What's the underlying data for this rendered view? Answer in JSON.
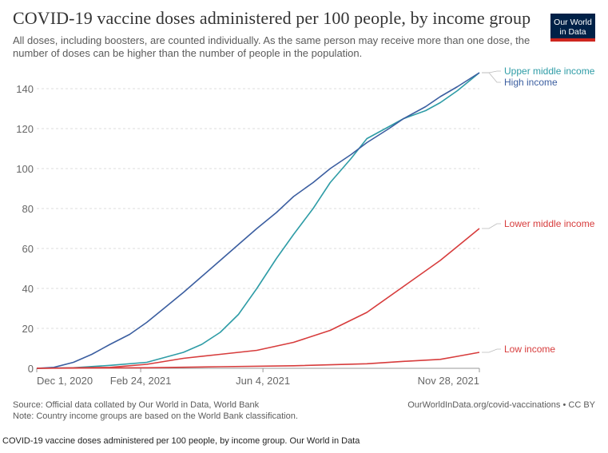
{
  "header": {
    "title": "COVID-19 vaccine doses administered per 100 people, by income group",
    "subtitle": "All doses, including boosters, are counted individually. As the same person may receive more than one dose, the number of doses can be higher than the number of people in the population.",
    "logo_line1": "Our World",
    "logo_line2": "in Data"
  },
  "chart_data": {
    "type": "line",
    "xlim": [
      "2020-12-01",
      "2021-11-28"
    ],
    "ylim": [
      0,
      150
    ],
    "yticks": [
      0,
      20,
      40,
      60,
      80,
      100,
      120,
      140
    ],
    "xticks": [
      {
        "label": "Dec 1, 2020",
        "date": "2020-12-01"
      },
      {
        "label": "Feb 24, 2021",
        "date": "2021-02-24"
      },
      {
        "label": "Jun 4, 2021",
        "date": "2021-06-04"
      },
      {
        "label": "Nov 28, 2021",
        "date": "2021-11-28"
      }
    ],
    "grid": "horizontal-dashed",
    "legend": "line-end labels",
    "series": [
      {
        "name": "Upper middle income",
        "color": "#2e9ca6",
        "x": [
          "2020-12-01",
          "2020-12-31",
          "2021-01-30",
          "2021-03-01",
          "2021-03-31",
          "2021-04-15",
          "2021-04-30",
          "2021-05-15",
          "2021-05-30",
          "2021-06-15",
          "2021-06-29",
          "2021-07-15",
          "2021-07-29",
          "2021-08-15",
          "2021-08-28",
          "2021-09-15",
          "2021-09-27",
          "2021-10-15",
          "2021-10-27",
          "2021-11-10",
          "2021-11-28"
        ],
        "y": [
          0,
          0.3,
          1.5,
          3,
          8,
          12,
          18,
          27,
          40,
          55,
          67,
          80,
          93,
          105,
          115,
          121,
          125,
          129,
          133,
          139,
          148
        ]
      },
      {
        "name": "High income",
        "color": "#3b5ea0",
        "x": [
          "2020-12-01",
          "2020-12-15",
          "2020-12-31",
          "2021-01-15",
          "2021-01-30",
          "2021-02-15",
          "2021-03-01",
          "2021-03-15",
          "2021-03-31",
          "2021-04-15",
          "2021-04-30",
          "2021-05-15",
          "2021-05-30",
          "2021-06-15",
          "2021-06-29",
          "2021-07-15",
          "2021-07-29",
          "2021-08-15",
          "2021-08-28",
          "2021-09-15",
          "2021-09-27",
          "2021-10-15",
          "2021-10-27",
          "2021-11-10",
          "2021-11-28"
        ],
        "y": [
          0,
          0.5,
          3,
          7,
          12,
          17,
          23,
          30,
          38,
          46,
          54,
          62,
          70,
          78,
          86,
          93,
          100,
          107,
          113,
          120,
          125,
          131,
          136,
          141,
          148
        ]
      },
      {
        "name": "Lower middle income",
        "color": "#d73c3c",
        "x": [
          "2020-12-01",
          "2021-01-30",
          "2021-03-01",
          "2021-03-31",
          "2021-04-30",
          "2021-05-30",
          "2021-06-29",
          "2021-07-29",
          "2021-08-28",
          "2021-09-27",
          "2021-10-27",
          "2021-11-10",
          "2021-11-28"
        ],
        "y": [
          0,
          0.5,
          2,
          5,
          7,
          9,
          13,
          19,
          28,
          41,
          54,
          61,
          70
        ]
      },
      {
        "name": "Low income",
        "color": "#d73c3c",
        "x": [
          "2020-12-01",
          "2021-03-01",
          "2021-04-30",
          "2021-06-29",
          "2021-08-28",
          "2021-09-27",
          "2021-10-27",
          "2021-11-10",
          "2021-11-28"
        ],
        "y": [
          0,
          0.3,
          0.8,
          1.3,
          2.3,
          3.5,
          4.5,
          6,
          8
        ]
      }
    ]
  },
  "footer": {
    "source": "Source: Official data collated by Our World in Data, World Bank",
    "note": "Note: Country income groups are based on the World Bank classification.",
    "url": "OurWorldInData.org/covid-vaccinations • CC BY"
  },
  "caption": "COVID-19 vaccine doses administered per 100 people, by income group. Our World in Data"
}
